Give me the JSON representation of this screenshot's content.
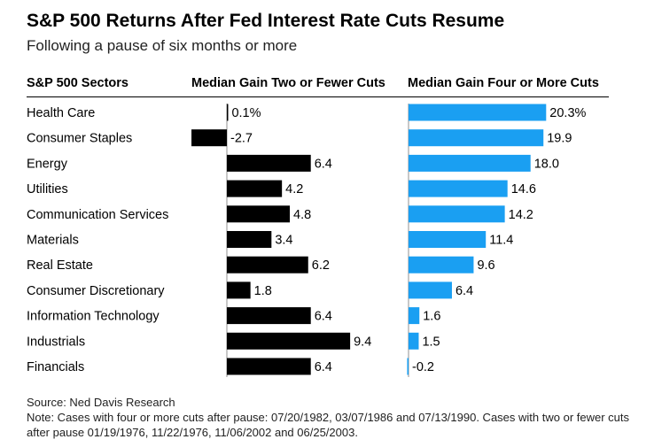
{
  "chart_data": {
    "type": "bar",
    "title": "S&P 500 Returns After Fed Interest Rate Cuts Resume",
    "subtitle": "Following a pause of six months or more",
    "category_header": "S&P 500 Sectors",
    "categories": [
      "Health Care",
      "Consumer Staples",
      "Energy",
      "Utilities",
      "Communication Services",
      "Materials",
      "Real Estate",
      "Consumer Discretionary",
      "Information Technology",
      "Industrials",
      "Financials"
    ],
    "series": [
      {
        "name": "Median Gain Two or Fewer Cuts",
        "values": [
          0.1,
          -2.7,
          6.4,
          4.2,
          4.8,
          3.4,
          6.2,
          1.8,
          6.4,
          9.4,
          6.4
        ],
        "labels": [
          "0.1%",
          "-2.7",
          "6.4",
          "4.2",
          "4.8",
          "3.4",
          "6.2",
          "1.8",
          "6.4",
          "9.4",
          "6.4"
        ],
        "color": "#000000"
      },
      {
        "name": "Median Gain Four or More Cuts",
        "values": [
          20.3,
          19.9,
          18.0,
          14.6,
          14.2,
          11.4,
          9.6,
          6.4,
          1.6,
          1.5,
          -0.2
        ],
        "labels": [
          "20.3%",
          "19.9",
          "18.0",
          "14.6",
          "14.2",
          "11.4",
          "9.6",
          "6.4",
          "1.6",
          "1.5",
          "-0.2"
        ],
        "color": "#1a9ff2"
      }
    ]
  },
  "footer": {
    "source": "Source: Ned Davis Research",
    "note": "Note: Cases with four or more cuts after pause: 07/20/1982, 03/07/1986 and 07/13/1990. Cases with two or fewer cuts after pause 01/19/1976, 11/22/1976, 11/06/2002 and 06/25/2003."
  }
}
